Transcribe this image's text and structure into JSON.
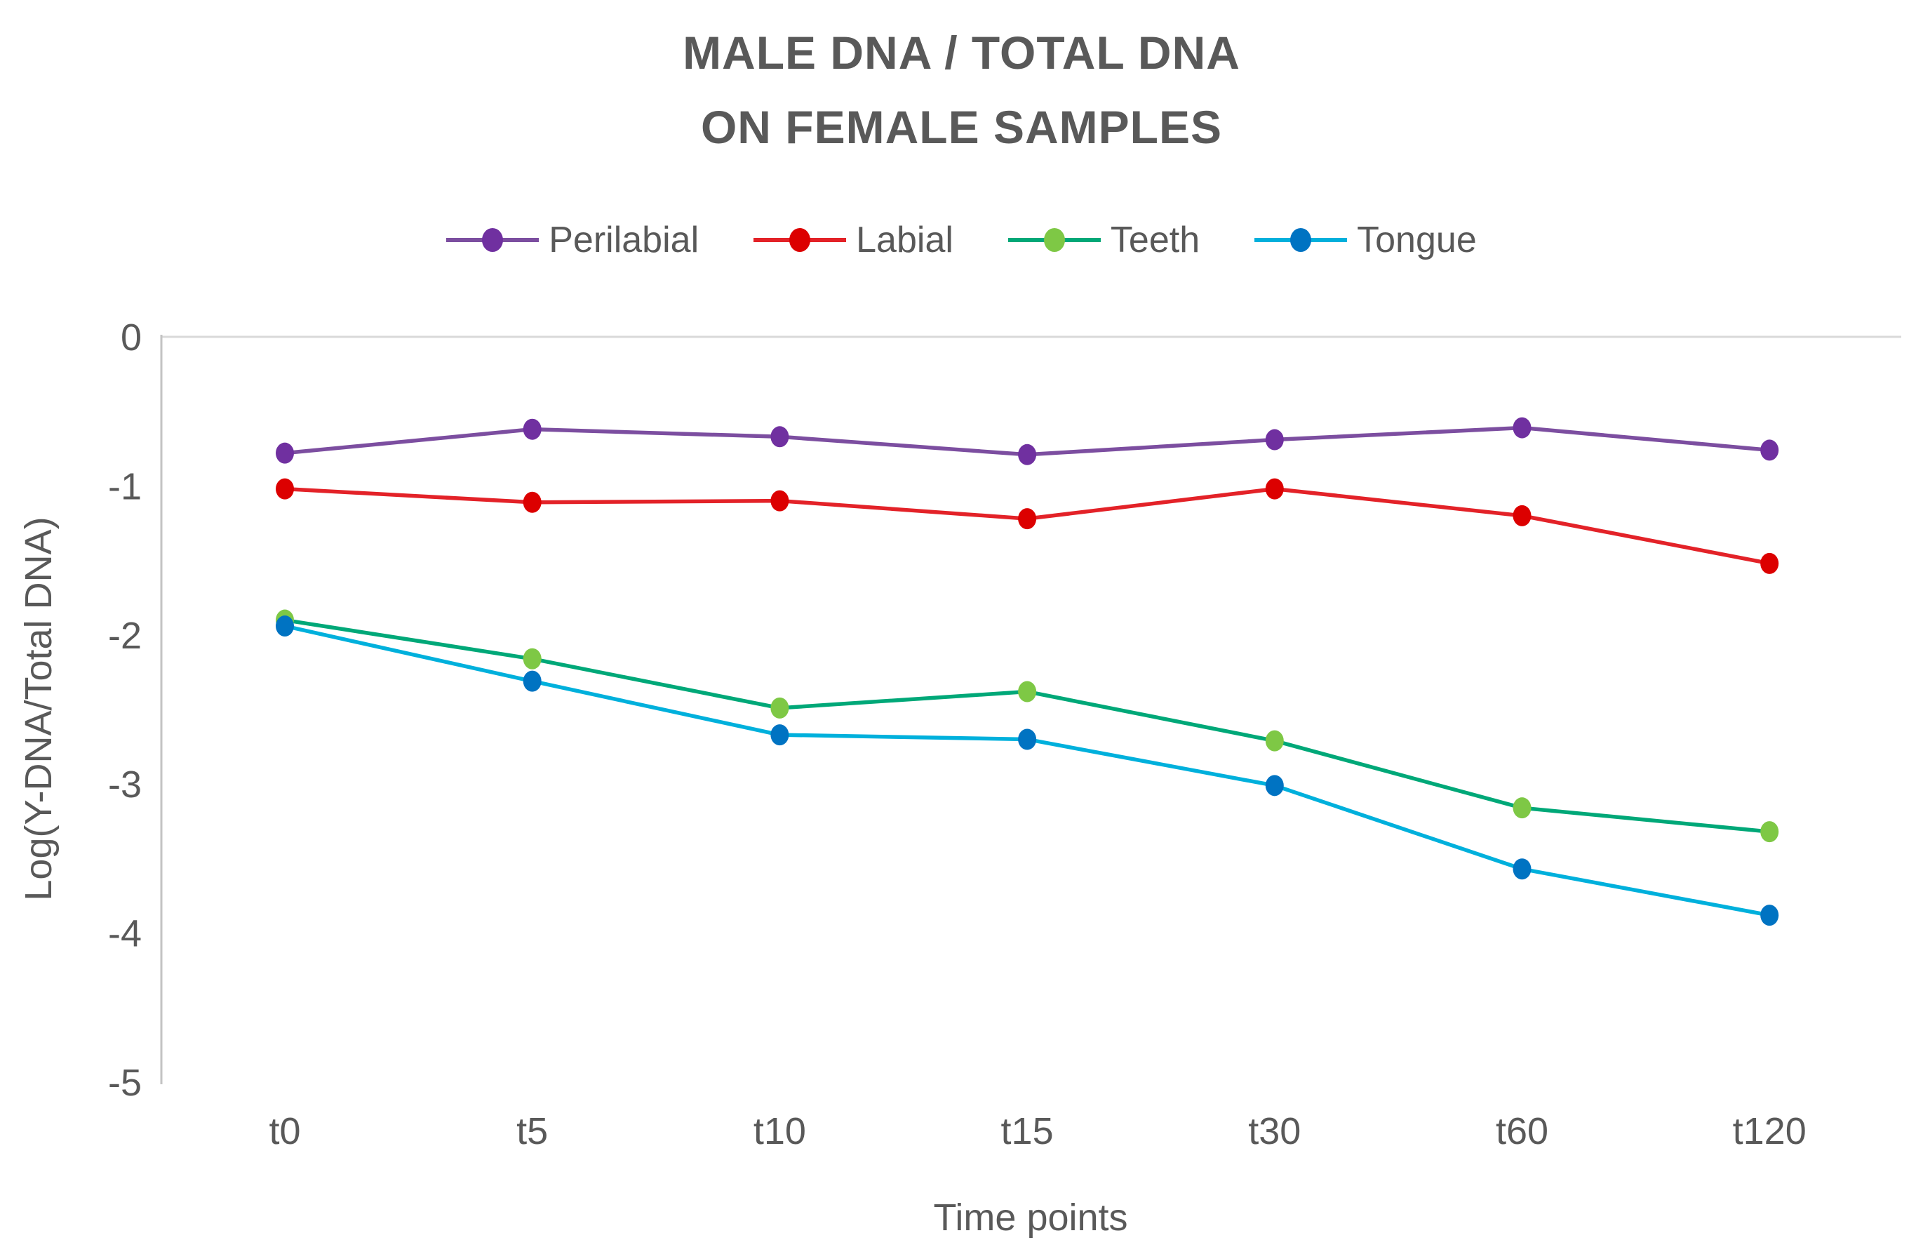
{
  "figure": {
    "title_line1": "MALE DNA / TOTAL DNA",
    "title_line2": "ON FEMALE SAMPLES"
  },
  "chart_data": {
    "type": "line",
    "title": "MALE DNA / TOTAL DNA ON FEMALE SAMPLES",
    "xlabel": "Time points",
    "ylabel": "Log(Y-DNA/Total DNA)",
    "categories": [
      "t0",
      "t5",
      "t10",
      "t15",
      "t30",
      "t60",
      "t120"
    ],
    "ylim": [
      -5,
      0
    ],
    "y_ticks": [
      0,
      -1,
      -2,
      -3,
      -4,
      -5
    ],
    "y_tick_labels": [
      "0",
      "-1",
      "-2",
      "-3",
      "-4",
      "-5"
    ],
    "grid": "single horizontal gridline at 0 only",
    "legend_position": "top",
    "text_color": "#595959",
    "series": [
      {
        "name": "Perilabial",
        "line_color": "#7c4ea0",
        "marker_color": "#7030a0",
        "values": [
          -0.78,
          -0.62,
          -0.67,
          -0.79,
          -0.69,
          -0.61,
          -0.76
        ]
      },
      {
        "name": "Labial",
        "line_color": "#e32228",
        "marker_color": "#dc0000",
        "values": [
          -1.02,
          -1.11,
          -1.1,
          -1.22,
          -1.02,
          -1.2,
          -1.52
        ]
      },
      {
        "name": "Teeth",
        "line_color": "#00a878",
        "marker_color": "#7ec845",
        "values": [
          -1.9,
          -2.16,
          -2.49,
          -2.38,
          -2.71,
          -3.16,
          -3.32
        ]
      },
      {
        "name": "Tongue",
        "line_color": "#00b0dc",
        "marker_color": "#0073c2",
        "values": [
          -1.94,
          -2.31,
          -2.67,
          -2.7,
          -3.01,
          -3.57,
          -3.88
        ]
      }
    ]
  }
}
